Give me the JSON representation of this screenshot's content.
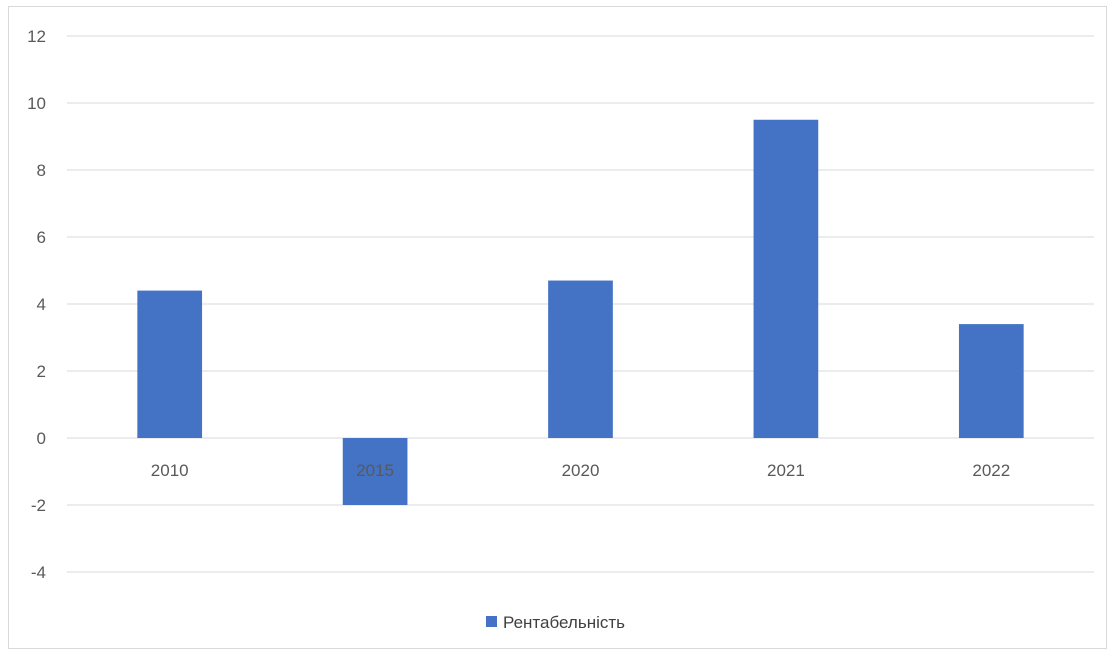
{
  "chart_data": {
    "type": "bar",
    "title": "",
    "xlabel": "",
    "ylabel": "",
    "categories": [
      "2010",
      "2015",
      "2020",
      "2021",
      "2022"
    ],
    "series": [
      {
        "name": "Рентабельність",
        "values": [
          4.4,
          -2.0,
          4.7,
          9.5,
          3.4
        ]
      }
    ],
    "ylim": [
      -4,
      12
    ],
    "yticks": [
      "12",
      "10",
      "8",
      "6",
      "4",
      "2",
      "0",
      "-2",
      "-4"
    ],
    "grid": true,
    "legend_position": "bottom",
    "colors": {
      "bar": "#4472C4",
      "grid": "#d9d9d9",
      "axis_text": "#595959"
    }
  }
}
